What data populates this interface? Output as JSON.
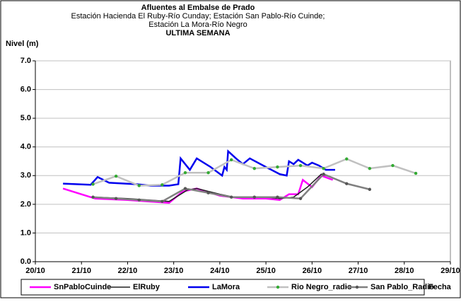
{
  "chart_data": {
    "type": "line",
    "title": "Afluentes al Embalse de Prado",
    "subtitle": [
      "Estación Hacienda El Ruby-Río Cunday; Estación San Pablo-Río Cuinde;",
      "Estación La Mora-Río Negro"
    ],
    "title2": "ULTIMA SEMANA",
    "ylabel": "Nivel (m)",
    "xlabel": "Fecha",
    "xlim": [
      20,
      29
    ],
    "xticks": [
      {
        "value": 20,
        "label": "20/10"
      },
      {
        "value": 21,
        "label": "21/10"
      },
      {
        "value": 22,
        "label": "22/10"
      },
      {
        "value": 23,
        "label": "23/10"
      },
      {
        "value": 24,
        "label": "24/10"
      },
      {
        "value": 25,
        "label": "25/10"
      },
      {
        "value": 26,
        "label": "26/10"
      },
      {
        "value": 27,
        "label": "27/10"
      },
      {
        "value": 28,
        "label": "28/10"
      },
      {
        "value": 29,
        "label": "29/10"
      }
    ],
    "ylim": [
      0,
      7
    ],
    "yticks": [
      {
        "value": 0,
        "label": "0.0"
      },
      {
        "value": 1,
        "label": "1.0"
      },
      {
        "value": 2,
        "label": "2.0"
      },
      {
        "value": 3,
        "label": "3.0"
      },
      {
        "value": 4,
        "label": "4.0"
      },
      {
        "value": 5,
        "label": "5.0"
      },
      {
        "value": 6,
        "label": "6.0"
      },
      {
        "value": 7,
        "label": "7.0"
      }
    ],
    "grid": true,
    "series": [
      {
        "name": "SnPabloCuinde",
        "color": "#ff00ff",
        "width": 2.5,
        "marker": false,
        "x": [
          20.6,
          21.3,
          22.0,
          22.9,
          23.2,
          23.5,
          24.0,
          24.5,
          25.0,
          25.3,
          25.5,
          25.7,
          25.8,
          26.0,
          26.2,
          26.45
        ],
        "values": [
          2.55,
          2.2,
          2.15,
          2.05,
          2.45,
          2.55,
          2.3,
          2.2,
          2.2,
          2.15,
          2.35,
          2.35,
          2.85,
          2.6,
          3.0,
          2.85
        ]
      },
      {
        "name": "ElRuby",
        "color": "#222222",
        "width": 1.5,
        "marker": false,
        "x": [
          21.3,
          22.0,
          22.9,
          23.3,
          23.5,
          24.0,
          24.3,
          25.0,
          25.3,
          25.6,
          25.9,
          26.2,
          26.4
        ],
        "values": [
          2.25,
          2.2,
          2.1,
          2.5,
          2.55,
          2.35,
          2.25,
          2.25,
          2.2,
          2.25,
          2.6,
          3.05,
          2.95
        ]
      },
      {
        "name": "LaMora",
        "color": "#0000ee",
        "width": 2.5,
        "marker": false,
        "x": [
          20.6,
          21.2,
          21.35,
          21.6,
          22.2,
          22.5,
          22.9,
          23.1,
          23.15,
          23.35,
          23.5,
          23.8,
          24.05,
          24.1,
          24.15,
          24.18,
          24.35,
          24.5,
          24.65,
          25.0,
          25.3,
          25.45,
          25.5,
          25.6,
          25.7,
          25.9,
          26.0,
          26.15,
          26.3,
          26.5
        ],
        "values": [
          2.72,
          2.68,
          2.95,
          2.75,
          2.7,
          2.65,
          2.65,
          2.7,
          3.6,
          3.2,
          3.6,
          3.3,
          3.0,
          3.3,
          3.2,
          3.85,
          3.6,
          3.4,
          3.6,
          3.3,
          3.05,
          3.0,
          3.5,
          3.4,
          3.55,
          3.35,
          3.45,
          3.35,
          3.2,
          3.2
        ]
      },
      {
        "name": "Rio Negro_radio",
        "color": "#c0c0c0",
        "marker_color": "#33aa33",
        "width": 2.5,
        "marker": true,
        "x": [
          21.25,
          21.75,
          22.25,
          22.75,
          23.25,
          23.75,
          24.25,
          24.75,
          25.25,
          25.75,
          26.25,
          26.75,
          27.25,
          27.75,
          28.25
        ],
        "values": [
          2.7,
          2.98,
          2.65,
          2.68,
          3.1,
          3.1,
          3.55,
          3.25,
          3.3,
          3.35,
          3.25,
          3.58,
          3.25,
          3.35,
          3.08
        ]
      },
      {
        "name": "San Pablo_Radio",
        "color": "#808080",
        "marker_color": "#555555",
        "width": 2.5,
        "marker": true,
        "x": [
          21.25,
          21.75,
          22.25,
          22.75,
          23.25,
          23.75,
          24.25,
          24.75,
          25.25,
          25.75,
          26.25,
          26.75,
          27.25
        ],
        "values": [
          2.25,
          2.2,
          2.15,
          2.1,
          2.55,
          2.4,
          2.25,
          2.25,
          2.25,
          2.2,
          3.05,
          2.72,
          2.52
        ]
      }
    ]
  }
}
